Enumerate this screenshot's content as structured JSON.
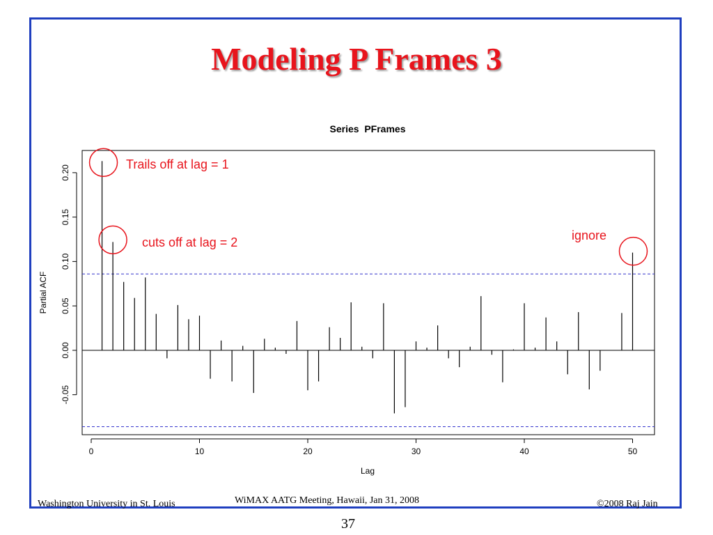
{
  "slide": {
    "title": "Modeling P Frames 3",
    "footer_left": "Washington University in St. Louis",
    "footer_center": "WiMAX AATG Meeting, Hawaii, Jan 31, 2008",
    "footer_right": "©2008 Raj Jain",
    "page_number": "37",
    "border_color": "#1f3fbf",
    "title_color": "#e8141c"
  },
  "chart_data": {
    "type": "bar",
    "title": "Series  PFrames",
    "xlabel": "Lag",
    "ylabel": "Partial ACF",
    "xlim": [
      0,
      52
    ],
    "ylim": [
      -0.095,
      0.225
    ],
    "xticks": [
      0,
      10,
      20,
      30,
      40,
      50
    ],
    "yticks": [
      -0.05,
      0.0,
      0.05,
      0.1,
      0.15,
      0.2
    ],
    "ytick_labels": [
      "-0.05",
      "0.00",
      "0.05",
      "0.10",
      "0.15",
      "0.20"
    ],
    "confidence_bounds": [
      0.086,
      -0.086
    ],
    "lags": [
      1,
      2,
      3,
      4,
      5,
      6,
      7,
      8,
      9,
      10,
      11,
      12,
      13,
      14,
      15,
      16,
      17,
      18,
      19,
      20,
      21,
      22,
      23,
      24,
      25,
      26,
      27,
      28,
      29,
      30,
      31,
      32,
      33,
      34,
      35,
      36,
      37,
      38,
      39,
      40,
      41,
      42,
      43,
      44,
      45,
      46,
      47,
      48,
      49,
      50
    ],
    "values": [
      0.213,
      0.122,
      0.077,
      0.059,
      0.082,
      0.041,
      -0.009,
      0.051,
      0.035,
      0.039,
      -0.032,
      0.011,
      -0.035,
      0.005,
      -0.048,
      0.013,
      0.003,
      -0.004,
      0.033,
      -0.045,
      -0.035,
      0.026,
      0.014,
      0.054,
      0.004,
      -0.009,
      0.053,
      -0.071,
      -0.064,
      0.01,
      0.003,
      0.028,
      -0.009,
      -0.019,
      0.004,
      0.061,
      -0.005,
      -0.036,
      0.001,
      0.053,
      0.003,
      0.037,
      0.01,
      -0.027,
      0.043,
      -0.044,
      -0.023,
      0.0,
      0.042,
      0.11
    ],
    "annotations": [
      {
        "text": "Trails off at lag = 1",
        "lag": 1
      },
      {
        "text": "cuts off at lag = 2",
        "lag": 2
      },
      {
        "text": "ignore",
        "lag": 50
      }
    ],
    "bar_color": "#000000",
    "bound_color": "#3333cc",
    "annotation_color": "#e8141c",
    "grid": false
  }
}
